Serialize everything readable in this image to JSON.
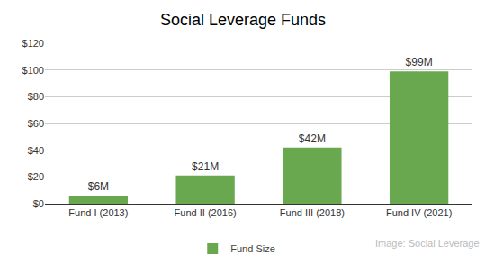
{
  "chart_data": {
    "type": "bar",
    "title": "Social Leverage Funds",
    "categories": [
      "Fund I (2013)",
      "Fund II (2016)",
      "Fund III (2018)",
      "Fund IV (2021)"
    ],
    "series": [
      {
        "name": "Fund Size",
        "color": "#6aa84f",
        "values": [
          6,
          21,
          42,
          99
        ],
        "value_labels": [
          "$6M",
          "$21M",
          "$42M",
          "$99M"
        ]
      }
    ],
    "ylim": [
      0,
      120
    ],
    "yticks": [
      {
        "value": 0,
        "label": "$0"
      },
      {
        "value": 20,
        "label": "$20"
      },
      {
        "value": 40,
        "label": "$40"
      },
      {
        "value": 60,
        "label": "$60"
      },
      {
        "value": 80,
        "label": "$80"
      },
      {
        "value": 100,
        "label": "$100"
      },
      {
        "value": 120,
        "label": "$120"
      }
    ],
    "grid": true,
    "data_labels": true,
    "legend": "bottom",
    "annotations": [
      {
        "text": "Image: Social Leverage"
      }
    ]
  }
}
